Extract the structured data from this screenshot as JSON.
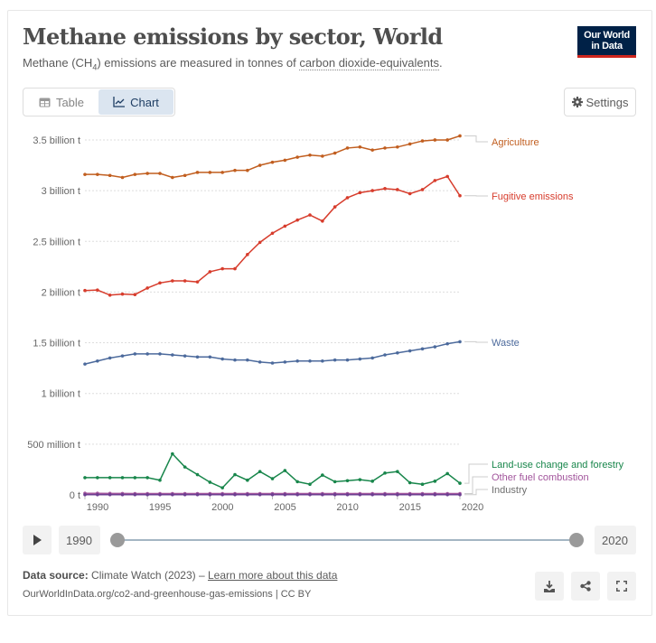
{
  "header": {
    "title": "Methane emissions by sector, World",
    "subtitle_pre": "Methane (CH",
    "subtitle_sub": "4",
    "subtitle_mid": ") emissions are measured in tonnes of ",
    "subtitle_link": "carbon dioxide-equivalents",
    "subtitle_post": "."
  },
  "logo": {
    "line1": "Our World",
    "line2": "in Data",
    "bg": "#002147",
    "accent": "#ce261e"
  },
  "tabs": [
    {
      "label": "Table",
      "icon": "table-icon",
      "active": false
    },
    {
      "label": "Chart",
      "icon": "line-chart-icon",
      "active": true
    }
  ],
  "settings": {
    "label": "Settings",
    "icon": "gear-icon"
  },
  "chart_data": {
    "type": "line",
    "title": "Methane emissions by sector, World",
    "xlabel": "",
    "ylabel": "",
    "unit": "tonnes CO2-equivalent",
    "x": [
      1990,
      1991,
      1992,
      1993,
      1994,
      1995,
      1996,
      1997,
      1998,
      1999,
      2000,
      2001,
      2002,
      2003,
      2004,
      2005,
      2006,
      2007,
      2008,
      2009,
      2010,
      2011,
      2012,
      2013,
      2014,
      2015,
      2016,
      2017,
      2018,
      2019,
      2020
    ],
    "xlim": [
      1990,
      2020
    ],
    "ylim": [
      0,
      3600000000
    ],
    "grid": true,
    "legend": "right (inline end labels)",
    "y_ticks": [
      {
        "value": 0,
        "label": "0 t"
      },
      {
        "value": 500000000,
        "label": "500 million t"
      },
      {
        "value": 1000000000,
        "label": "1 billion t"
      },
      {
        "value": 1500000000,
        "label": "1.5 billion t"
      },
      {
        "value": 2000000000,
        "label": "2 billion t"
      },
      {
        "value": 2500000000,
        "label": "2.5 billion t"
      },
      {
        "value": 3000000000,
        "label": "3 billion t"
      },
      {
        "value": 3500000000,
        "label": "3.5 billion t"
      }
    ],
    "x_ticks": [
      {
        "value": 1990,
        "label": "1990"
      },
      {
        "value": 1995,
        "label": "1995"
      },
      {
        "value": 2000,
        "label": "2000"
      },
      {
        "value": 2005,
        "label": "2005"
      },
      {
        "value": 2010,
        "label": "2010"
      },
      {
        "value": 2015,
        "label": "2015"
      },
      {
        "value": 2020,
        "label": "2020"
      }
    ],
    "series": [
      {
        "name": "Agriculture",
        "color": "#c15e1f",
        "values": [
          3160000000,
          3160000000,
          3150000000,
          3130000000,
          3160000000,
          3170000000,
          3170000000,
          3130000000,
          3150000000,
          3180000000,
          3180000000,
          3180000000,
          3200000000,
          3200000000,
          3250000000,
          3280000000,
          3300000000,
          3330000000,
          3350000000,
          3340000000,
          3370000000,
          3420000000,
          3430000000,
          3400000000,
          3420000000,
          3430000000,
          3460000000,
          3490000000,
          3500000000,
          3500000000,
          3540000000
        ]
      },
      {
        "name": "Fugitive emissions",
        "color": "#d73c2c",
        "values": [
          2015000000,
          2020000000,
          1970000000,
          1980000000,
          1975000000,
          2040000000,
          2090000000,
          2110000000,
          2110000000,
          2100000000,
          2200000000,
          2230000000,
          2230000000,
          2370000000,
          2490000000,
          2580000000,
          2650000000,
          2710000000,
          2760000000,
          2700000000,
          2840000000,
          2930000000,
          2980000000,
          3000000000,
          3020000000,
          3010000000,
          2970000000,
          3010000000,
          3100000000,
          3140000000,
          2950000000
        ]
      },
      {
        "name": "Waste",
        "color": "#4c6a9c",
        "values": [
          1290000000,
          1320000000,
          1350000000,
          1370000000,
          1390000000,
          1390000000,
          1390000000,
          1380000000,
          1370000000,
          1360000000,
          1360000000,
          1340000000,
          1330000000,
          1330000000,
          1310000000,
          1300000000,
          1310000000,
          1320000000,
          1320000000,
          1320000000,
          1330000000,
          1330000000,
          1340000000,
          1350000000,
          1380000000,
          1400000000,
          1420000000,
          1440000000,
          1460000000,
          1490000000,
          1510000000
        ]
      },
      {
        "name": "Land-use change and forestry",
        "color": "#18864b",
        "values": [
          170000000,
          170000000,
          170000000,
          170000000,
          170000000,
          170000000,
          145000000,
          405000000,
          275000000,
          200000000,
          125000000,
          70000000,
          200000000,
          145000000,
          230000000,
          160000000,
          240000000,
          130000000,
          105000000,
          195000000,
          130000000,
          140000000,
          150000000,
          135000000,
          215000000,
          230000000,
          120000000,
          105000000,
          135000000,
          210000000,
          115000000
        ]
      },
      {
        "name": "Other fuel combustion",
        "color": "#a2559c",
        "values": [
          16000000,
          16000000,
          15000000,
          14000000,
          13000000,
          13000000,
          13000000,
          13000000,
          13000000,
          13000000,
          13000000,
          13000000,
          13000000,
          13000000,
          13000000,
          13000000,
          13000000,
          13000000,
          13000000,
          13000000,
          13000000,
          13000000,
          13000000,
          13000000,
          13000000,
          13000000,
          13000000,
          13000000,
          13000000,
          13000000,
          13000000
        ]
      },
      {
        "name": "Industry",
        "color": "#6d3e91",
        "values": [
          2000000,
          2000000,
          2000000,
          2000000,
          2000000,
          2000000,
          2000000,
          2000000,
          2000000,
          2000000,
          2000000,
          2000000,
          2000000,
          2000000,
          2000000,
          2000000,
          2000000,
          2000000,
          2000000,
          2000000,
          2000000,
          2000000,
          2000000,
          2000000,
          2000000,
          2000000,
          2000000,
          2000000,
          2000000,
          2000000,
          2000000
        ]
      }
    ],
    "end_labels": [
      {
        "series": "Agriculture",
        "label": "Agriculture",
        "color": "#c15e1f"
      },
      {
        "series": "Fugitive emissions",
        "label": "Fugitive emissions",
        "color": "#d73c2c"
      },
      {
        "series": "Waste",
        "label": "Waste",
        "color": "#4c6a9c"
      },
      {
        "series": "Land-use change and forestry",
        "label": "Land-use change and forestry",
        "color": "#18864b"
      },
      {
        "series": "Other fuel combustion",
        "label": "Other fuel combustion",
        "color": "#a2559c"
      },
      {
        "series": "Industry",
        "label": "Industry",
        "color": "#6e6e6e"
      }
    ]
  },
  "timeline": {
    "start": "1990",
    "end": "2020",
    "play_icon": "play-icon"
  },
  "footer": {
    "source_label": "Data source:",
    "source_text": " Climate Watch (2023) – ",
    "learn_more": "Learn more about this data",
    "url": "OurWorldInData.org/co2-and-greenhouse-gas-emissions | CC BY",
    "actions": [
      "download-icon",
      "share-icon",
      "fullscreen-icon"
    ]
  }
}
